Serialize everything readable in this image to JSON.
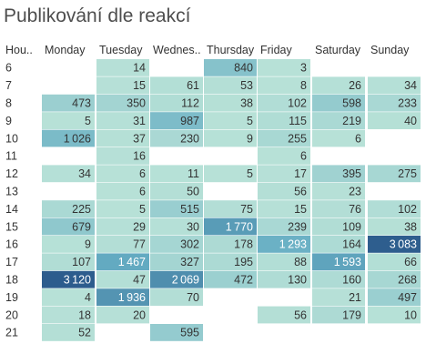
{
  "chart_data": {
    "type": "heatmap",
    "title": "Publikování dle reakcí",
    "row_header": "Hou..",
    "columns": [
      "Monday",
      "Tuesday",
      "Wednes..",
      "Thursday",
      "Friday",
      "Saturday",
      "Sunday"
    ],
    "rows": [
      "6",
      "7",
      "8",
      "9",
      "10",
      "11",
      "12",
      "13",
      "14",
      "15",
      "16",
      "17",
      "18",
      "19",
      "20",
      "21"
    ],
    "values": [
      [
        null,
        14,
        null,
        840,
        3,
        null,
        null
      ],
      [
        null,
        15,
        61,
        53,
        8,
        26,
        34
      ],
      [
        473,
        350,
        112,
        38,
        102,
        598,
        233
      ],
      [
        5,
        31,
        987,
        5,
        115,
        219,
        40
      ],
      [
        1026,
        37,
        230,
        9,
        255,
        6,
        null
      ],
      [
        null,
        16,
        null,
        null,
        6,
        null,
        null
      ],
      [
        34,
        6,
        11,
        5,
        17,
        395,
        275
      ],
      [
        null,
        6,
        50,
        null,
        56,
        23,
        null
      ],
      [
        225,
        5,
        515,
        75,
        15,
        76,
        102
      ],
      [
        679,
        29,
        30,
        1770,
        239,
        109,
        38
      ],
      [
        9,
        77,
        302,
        178,
        1293,
        164,
        3083
      ],
      [
        107,
        1467,
        327,
        195,
        88,
        1593,
        66
      ],
      [
        3120,
        47,
        2069,
        472,
        130,
        160,
        268
      ],
      [
        4,
        1936,
        70,
        null,
        null,
        21,
        497
      ],
      [
        18,
        20,
        null,
        null,
        56,
        179,
        10
      ],
      [
        52,
        null,
        595,
        null,
        null,
        null,
        null
      ]
    ],
    "color_scale": {
      "low": "#b7e1d7",
      "mid": "#65adc3",
      "high": "#2d5c8d"
    }
  }
}
